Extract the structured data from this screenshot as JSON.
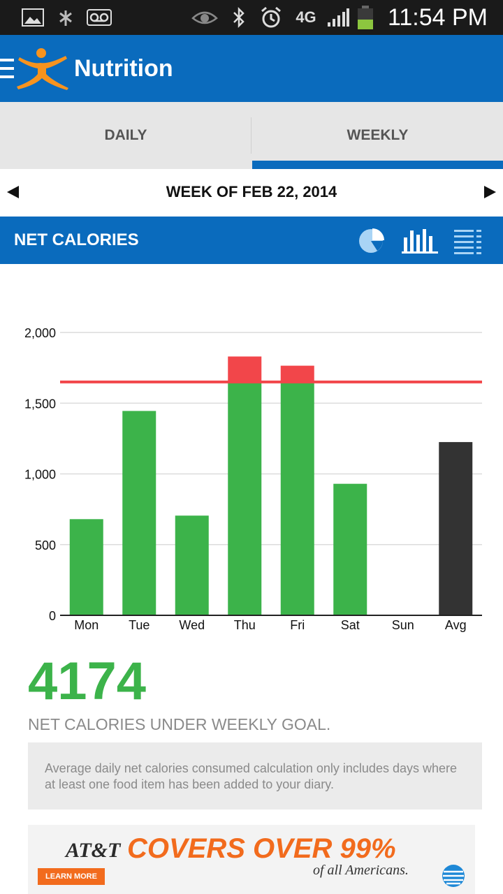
{
  "status_bar": {
    "time": "11:54 PM",
    "icons": [
      "gallery-icon",
      "pinwheel-icon",
      "voicemail-icon",
      "eye-icon",
      "bluetooth-icon",
      "alarm-icon",
      "network-4g-lte-icon",
      "signal-icon",
      "battery-icon"
    ],
    "network_label": "4G"
  },
  "app_bar": {
    "title": "Nutrition",
    "menu_icon": "hamburger-menu-icon",
    "logo_icon": "myfitnesspal-figure-icon"
  },
  "tabs": [
    {
      "label": "DAILY",
      "selected": false
    },
    {
      "label": "WEEKLY",
      "selected": true
    }
  ],
  "week_nav": {
    "label": "WEEK OF FEB 22, 2014",
    "prev_icon": "triangle-left-icon",
    "next_icon": "triangle-right-icon"
  },
  "section": {
    "title": "NET CALORIES",
    "view_icons": [
      "pie-chart-icon",
      "bar-chart-icon",
      "list-view-icon"
    ]
  },
  "chart_data": {
    "type": "bar",
    "categories": [
      "Mon",
      "Tue",
      "Wed",
      "Thu",
      "Fri",
      "Sat",
      "Sun",
      "Avg"
    ],
    "series": [
      {
        "values": [
          680,
          1445,
          705,
          1650,
          1650,
          930,
          0,
          0
        ],
        "color": "#3cb34a"
      },
      {
        "values": [
          0,
          0,
          0,
          180,
          115,
          0,
          0,
          0
        ],
        "color": "#f2464a"
      },
      {
        "values": [
          0,
          0,
          0,
          0,
          0,
          0,
          0,
          1225
        ],
        "color": "#333333"
      }
    ],
    "goal_line": 1650,
    "goal_color": "#f2464a",
    "ylim": [
      0,
      2000
    ],
    "yticks": [
      0,
      500,
      1000,
      1500,
      2000
    ],
    "ytick_labels": [
      "0",
      "500",
      "1,000",
      "1,500",
      "2,000"
    ],
    "grid": true
  },
  "summary": {
    "value": "4174",
    "caption": "NET CALORIES UNDER WEEKLY GOAL.",
    "note": "Average daily net calories consumed calculation only includes days where at least one food item has been added to your diary."
  },
  "ad": {
    "brand": "AT&T",
    "headline": "COVERS OVER 99%",
    "subline": "of all Americans.",
    "cta": "LEARN MORE",
    "logo_icon": "att-globe-icon",
    "brand_color": "#f26b1d"
  }
}
